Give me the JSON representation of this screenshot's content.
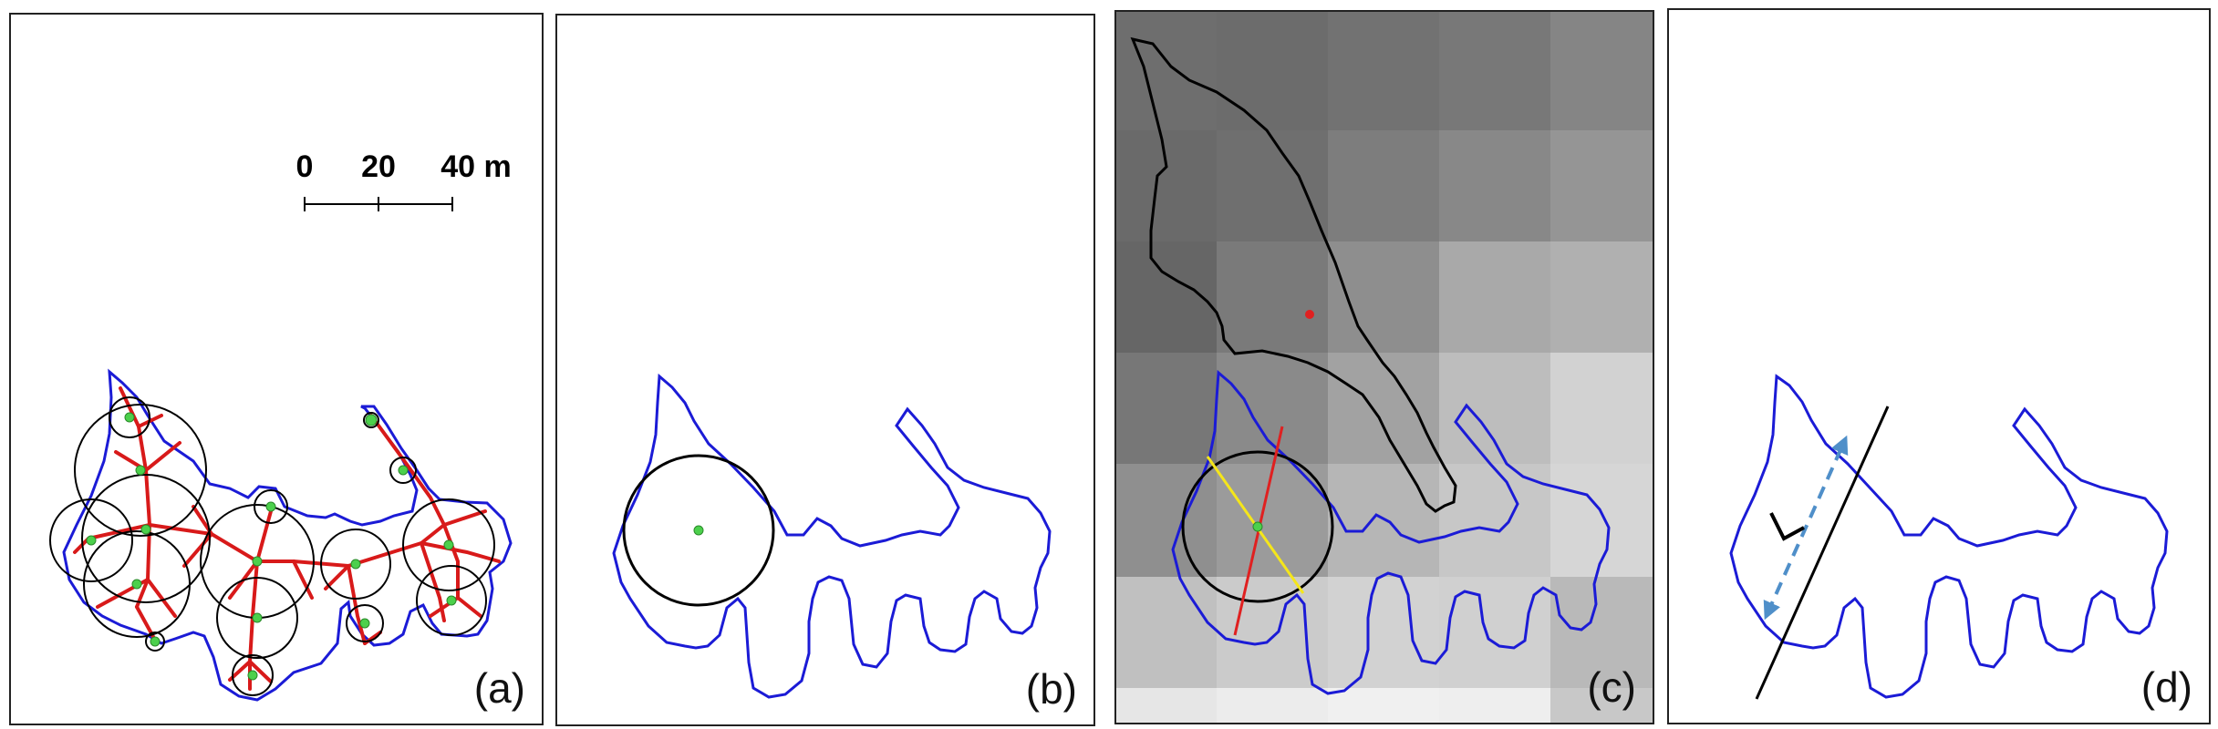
{
  "panels": {
    "a": {
      "label": "(a)"
    },
    "b": {
      "label": "(b)"
    },
    "c": {
      "label": "(c)"
    },
    "d": {
      "label": "(d)"
    }
  },
  "scale_bar": {
    "tick0": "0",
    "tick1": "20",
    "tick2": "40 m"
  },
  "annotations": {
    "width_symbol": "L"
  },
  "colors": {
    "outline": "#1b1bd6",
    "skeleton": "#d81a1a",
    "centers": "#4cd04c",
    "circles": "#000000",
    "cross_line_red": "#e02020",
    "cross_line_yellow": "#f5e61a",
    "arrow": "#4f8fc9"
  }
}
